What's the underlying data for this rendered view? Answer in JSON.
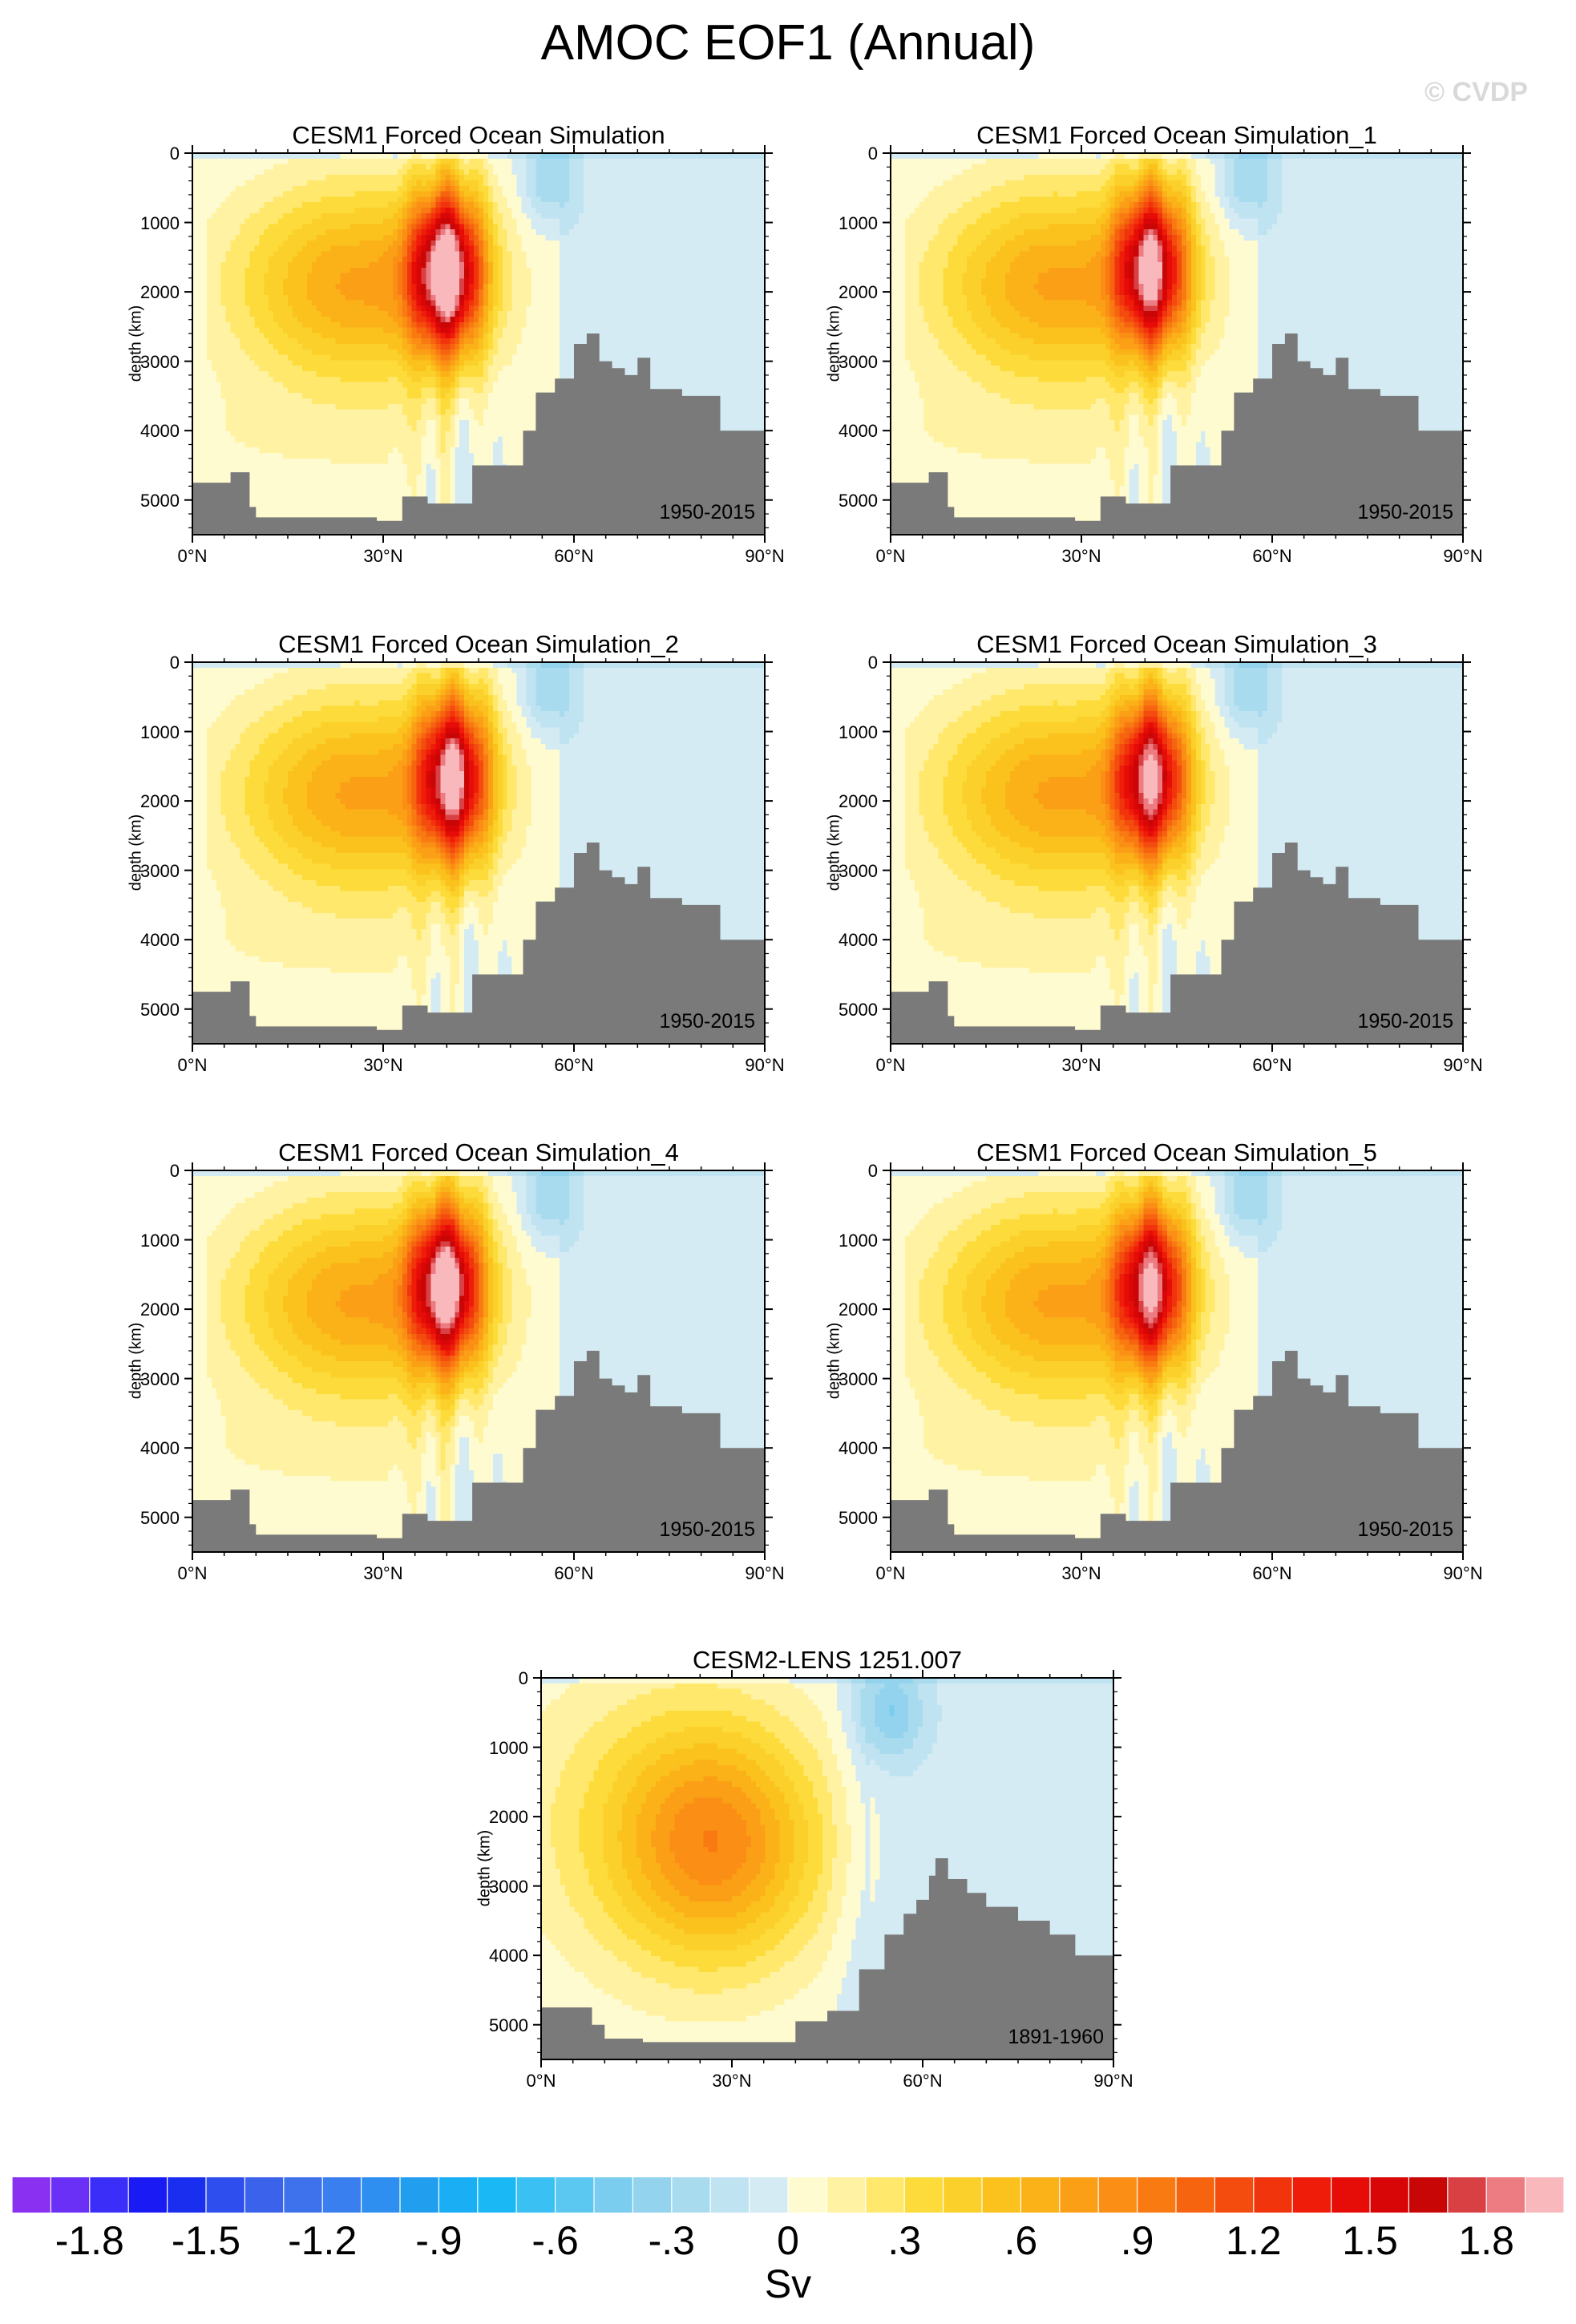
{
  "title": "AMOC EOF1 (Annual)",
  "copyright": "© CVDP",
  "colors": {
    "land": "#7a7a7a",
    "frame": "#000000",
    "contour_line": "#1a1a1a"
  },
  "chart_data": [
    {
      "type": "filled-contour",
      "title": "CESM1 Forced Ocean Simulation",
      "period": "1950-2015",
      "ylabel": "depth (km)",
      "x_ticks": [
        "0°N",
        "30°N",
        "60°N",
        "90°N"
      ],
      "y_ticks": [
        "0",
        "1000",
        "2000",
        "3000",
        "4000",
        "5000"
      ],
      "xlim": [
        0,
        90
      ],
      "ylim": [
        5500,
        0
      ],
      "core_lat": 40,
      "core_depth": 1700,
      "core_value": 1.9,
      "bathymetry": [
        [
          0,
          4750
        ],
        [
          3,
          4750
        ],
        [
          6,
          4600
        ],
        [
          9,
          5100
        ],
        [
          10,
          5250
        ],
        [
          29,
          5300
        ],
        [
          33,
          4950
        ],
        [
          37,
          5050
        ],
        [
          44,
          4500
        ],
        [
          52,
          4000
        ],
        [
          54,
          3450
        ],
        [
          57,
          3250
        ],
        [
          60,
          2750
        ],
        [
          62,
          2600
        ],
        [
          64,
          3000
        ],
        [
          66,
          3100
        ],
        [
          68,
          3200
        ],
        [
          70,
          2950
        ],
        [
          72,
          3400
        ],
        [
          77,
          3500
        ],
        [
          83,
          4000
        ],
        [
          90,
          4000
        ]
      ]
    },
    {
      "type": "filled-contour",
      "title": "CESM1 Forced Ocean Simulation_1",
      "period": "1950-2015",
      "ylabel": "depth (km)",
      "x_ticks": [
        "0°N",
        "30°N",
        "60°N",
        "90°N"
      ],
      "y_ticks": [
        "0",
        "1000",
        "2000",
        "3000",
        "4000",
        "5000"
      ],
      "xlim": [
        0,
        90
      ],
      "ylim": [
        5500,
        0
      ],
      "core_lat": 41,
      "core_depth": 1650,
      "core_value": 1.7,
      "bathymetry": [
        [
          0,
          4750
        ],
        [
          3,
          4750
        ],
        [
          6,
          4600
        ],
        [
          9,
          5100
        ],
        [
          10,
          5250
        ],
        [
          29,
          5300
        ],
        [
          33,
          4950
        ],
        [
          37,
          5050
        ],
        [
          44,
          4500
        ],
        [
          52,
          4000
        ],
        [
          54,
          3450
        ],
        [
          57,
          3250
        ],
        [
          60,
          2750
        ],
        [
          62,
          2600
        ],
        [
          64,
          3000
        ],
        [
          66,
          3100
        ],
        [
          68,
          3200
        ],
        [
          70,
          2950
        ],
        [
          72,
          3400
        ],
        [
          77,
          3500
        ],
        [
          83,
          4000
        ],
        [
          90,
          4000
        ]
      ]
    },
    {
      "type": "filled-contour",
      "title": "CESM1 Forced Ocean Simulation_2",
      "period": "1950-2015",
      "ylabel": "depth (km)",
      "x_ticks": [
        "0°N",
        "30°N",
        "60°N",
        "90°N"
      ],
      "y_ticks": [
        "0",
        "1000",
        "2000",
        "3000",
        "4000",
        "5000"
      ],
      "xlim": [
        0,
        90
      ],
      "ylim": [
        5500,
        0
      ],
      "core_lat": 41,
      "core_depth": 1650,
      "core_value": 1.7,
      "bathymetry": [
        [
          0,
          4750
        ],
        [
          3,
          4750
        ],
        [
          6,
          4600
        ],
        [
          9,
          5100
        ],
        [
          10,
          5250
        ],
        [
          29,
          5300
        ],
        [
          33,
          4950
        ],
        [
          37,
          5050
        ],
        [
          44,
          4500
        ],
        [
          52,
          4000
        ],
        [
          54,
          3450
        ],
        [
          57,
          3250
        ],
        [
          60,
          2750
        ],
        [
          62,
          2600
        ],
        [
          64,
          3000
        ],
        [
          66,
          3100
        ],
        [
          68,
          3200
        ],
        [
          70,
          2950
        ],
        [
          72,
          3400
        ],
        [
          77,
          3500
        ],
        [
          83,
          4000
        ],
        [
          90,
          4000
        ]
      ]
    },
    {
      "type": "filled-contour",
      "title": "CESM1 Forced Ocean Simulation_3",
      "period": "1950-2015",
      "ylabel": "depth (km)",
      "x_ticks": [
        "0°N",
        "30°N",
        "60°N",
        "90°N"
      ],
      "y_ticks": [
        "0",
        "1000",
        "2000",
        "3000",
        "4000",
        "5000"
      ],
      "xlim": [
        0,
        90
      ],
      "ylim": [
        5500,
        0
      ],
      "core_lat": 41,
      "core_depth": 1650,
      "core_value": 1.6,
      "bathymetry": [
        [
          0,
          4750
        ],
        [
          3,
          4750
        ],
        [
          6,
          4600
        ],
        [
          9,
          5100
        ],
        [
          10,
          5250
        ],
        [
          29,
          5300
        ],
        [
          33,
          4950
        ],
        [
          37,
          5050
        ],
        [
          44,
          4500
        ],
        [
          52,
          4000
        ],
        [
          54,
          3450
        ],
        [
          57,
          3250
        ],
        [
          60,
          2750
        ],
        [
          62,
          2600
        ],
        [
          64,
          3000
        ],
        [
          66,
          3100
        ],
        [
          68,
          3200
        ],
        [
          70,
          2950
        ],
        [
          72,
          3400
        ],
        [
          77,
          3500
        ],
        [
          83,
          4000
        ],
        [
          90,
          4000
        ]
      ]
    },
    {
      "type": "filled-contour",
      "title": "CESM1 Forced Ocean Simulation_4",
      "period": "1950-2015",
      "ylabel": "depth (km)",
      "x_ticks": [
        "0°N",
        "30°N",
        "60°N",
        "90°N"
      ],
      "y_ticks": [
        "0",
        "1000",
        "2000",
        "3000",
        "4000",
        "5000"
      ],
      "xlim": [
        0,
        90
      ],
      "ylim": [
        5500,
        0
      ],
      "core_lat": 40,
      "core_depth": 1650,
      "core_value": 1.8,
      "bathymetry": [
        [
          0,
          4750
        ],
        [
          3,
          4750
        ],
        [
          6,
          4600
        ],
        [
          9,
          5100
        ],
        [
          10,
          5250
        ],
        [
          29,
          5300
        ],
        [
          33,
          4950
        ],
        [
          37,
          5050
        ],
        [
          44,
          4500
        ],
        [
          52,
          4000
        ],
        [
          54,
          3450
        ],
        [
          57,
          3250
        ],
        [
          60,
          2750
        ],
        [
          62,
          2600
        ],
        [
          64,
          3000
        ],
        [
          66,
          3100
        ],
        [
          68,
          3200
        ],
        [
          70,
          2950
        ],
        [
          72,
          3400
        ],
        [
          77,
          3500
        ],
        [
          83,
          4000
        ],
        [
          90,
          4000
        ]
      ]
    },
    {
      "type": "filled-contour",
      "title": "CESM1 Forced Ocean Simulation_5",
      "period": "1950-2015",
      "ylabel": "depth (km)",
      "x_ticks": [
        "0°N",
        "30°N",
        "60°N",
        "90°N"
      ],
      "y_ticks": [
        "0",
        "1000",
        "2000",
        "3000",
        "4000",
        "5000"
      ],
      "xlim": [
        0,
        90
      ],
      "ylim": [
        5500,
        0
      ],
      "core_lat": 41,
      "core_depth": 1650,
      "core_value": 1.6,
      "bathymetry": [
        [
          0,
          4750
        ],
        [
          3,
          4750
        ],
        [
          6,
          4600
        ],
        [
          9,
          5100
        ],
        [
          10,
          5250
        ],
        [
          29,
          5300
        ],
        [
          33,
          4950
        ],
        [
          37,
          5050
        ],
        [
          44,
          4500
        ],
        [
          52,
          4000
        ],
        [
          54,
          3450
        ],
        [
          57,
          3250
        ],
        [
          60,
          2750
        ],
        [
          62,
          2600
        ],
        [
          64,
          3000
        ],
        [
          66,
          3100
        ],
        [
          68,
          3200
        ],
        [
          70,
          2950
        ],
        [
          72,
          3400
        ],
        [
          77,
          3500
        ],
        [
          83,
          4000
        ],
        [
          90,
          4000
        ]
      ]
    },
    {
      "type": "filled-contour",
      "title": "CESM2-LENS 1251.007",
      "period": "1891-1960",
      "ylabel": "depth (km)",
      "x_ticks": [
        "0°N",
        "30°N",
        "60°N",
        "90°N"
      ],
      "y_ticks": [
        "0",
        "1000",
        "2000",
        "3000",
        "4000",
        "5000"
      ],
      "xlim": [
        0,
        90
      ],
      "ylim": [
        5500,
        0
      ],
      "core_lat": 28,
      "core_depth": 2400,
      "core_value": 0.75,
      "bathymetry": [
        [
          0,
          4750
        ],
        [
          5,
          4750
        ],
        [
          8,
          5000
        ],
        [
          10,
          5200
        ],
        [
          16,
          5250
        ],
        [
          34,
          5250
        ],
        [
          40,
          4950
        ],
        [
          45,
          4800
        ],
        [
          50,
          4200
        ],
        [
          54,
          3700
        ],
        [
          57,
          3400
        ],
        [
          59,
          3200
        ],
        [
          61,
          2850
        ],
        [
          62,
          2600
        ],
        [
          64,
          2900
        ],
        [
          67,
          3100
        ],
        [
          70,
          3300
        ],
        [
          75,
          3500
        ],
        [
          80,
          3700
        ],
        [
          84,
          4000
        ],
        [
          90,
          4000
        ]
      ]
    }
  ],
  "colorbar": {
    "units": "Sv",
    "tick_labels": [
      "-1.8",
      "-1.5",
      "-1.2",
      "-.9",
      "-.6",
      "-.3",
      "0",
      ".3",
      ".6",
      ".9",
      "1.2",
      "1.5",
      "1.8"
    ],
    "boundaries": [
      -2.0,
      2.0
    ],
    "step": 0.1,
    "colors": [
      "#8a30f0",
      "#6a30f5",
      "#3a2ef8",
      "#1a1af5",
      "#1a2ef0",
      "#2e4eee",
      "#3a62ea",
      "#3e72ec",
      "#3a7ff0",
      "#2f8ff0",
      "#229eef",
      "#1aaef5",
      "#1ab8f5",
      "#3ac0f2",
      "#5ac8f0",
      "#7bcdef",
      "#93d3ee",
      "#a9dbef",
      "#bfe3f1",
      "#d4ebf4",
      "#fffbd0",
      "#fff2a2",
      "#ffe86c",
      "#fcdb3a",
      "#fbd02a",
      "#fbc21e",
      "#fbb218",
      "#fba016",
      "#fb8e14",
      "#fa7a12",
      "#f76410",
      "#f44c0e",
      "#f2340c",
      "#ef1c0a",
      "#e60c08",
      "#d80606",
      "#c80606",
      "#d84044",
      "#ec7c82",
      "#f9b8bc"
    ]
  }
}
